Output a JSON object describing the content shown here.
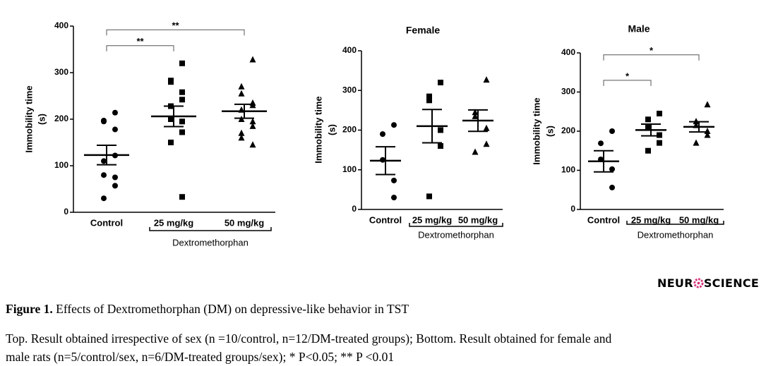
{
  "chart_data": [
    {
      "type": "scatter",
      "title": null,
      "ylabel": [
        "Immobility time",
        "(s)"
      ],
      "categories": [
        "Control",
        "25 mg/kg",
        "50 mg/kg"
      ],
      "group_label": "Dextromethorphan",
      "markers": [
        "circle",
        "square",
        "triangle"
      ],
      "points": [
        [
          214,
          197,
          195,
          178,
          122,
          110,
          80,
          75,
          57,
          30
        ],
        [
          320,
          283,
          280,
          258,
          242,
          228,
          200,
          195,
          172,
          150,
          150,
          33
        ],
        [
          328,
          270,
          255,
          235,
          230,
          220,
          200,
          195,
          185,
          170,
          160,
          145
        ]
      ],
      "means": [
        123,
        206,
        217
      ],
      "sems": [
        21,
        22,
        15
      ],
      "ylim": [
        0,
        400
      ],
      "yticks": [
        0,
        100,
        200,
        300,
        400
      ],
      "significance": [
        {
          "between": [
            "Control",
            "25 mg/kg"
          ],
          "y": 358,
          "label": "**"
        },
        {
          "between": [
            "Control",
            "50 mg/kg"
          ],
          "y": 392,
          "label": "**"
        }
      ]
    },
    {
      "type": "scatter",
      "title": "Female",
      "ylabel": [
        "Immobility time",
        "(s)"
      ],
      "categories": [
        "Control",
        "25 mg/kg",
        "50 mg/kg"
      ],
      "group_label": "Dextromethorphan",
      "markers": [
        "circle",
        "square",
        "triangle"
      ],
      "points": [
        [
          213,
          190,
          125,
          73,
          30
        ],
        [
          320,
          285,
          275,
          200,
          160,
          33
        ],
        [
          327,
          245,
          235,
          205,
          165,
          145
        ]
      ],
      "means": [
        123,
        210,
        224
      ],
      "sems": [
        35,
        42,
        27
      ],
      "ylim": [
        0,
        400
      ],
      "yticks": [
        0,
        100,
        200,
        300,
        400
      ],
      "significance": []
    },
    {
      "type": "scatter",
      "title": "Male",
      "ylabel": [
        "Immobility time",
        "(s)"
      ],
      "categories": [
        "Control",
        "25 mg/kg",
        "50 mg/kg"
      ],
      "group_label": "Dextromethorphan",
      "markers": [
        "circle",
        "square",
        "triangle"
      ],
      "points": [
        [
          200,
          169,
          128,
          103,
          56
        ],
        [
          245,
          230,
          210,
          190,
          170,
          150
        ],
        [
          268,
          225,
          215,
          200,
          190,
          170
        ]
      ],
      "means": [
        123,
        203,
        211
      ],
      "sems": [
        27,
        15,
        13
      ],
      "ylim": [
        0,
        400
      ],
      "yticks": [
        0,
        100,
        200,
        300,
        400
      ],
      "significance": [
        {
          "between": [
            "Control",
            "25 mg/kg"
          ],
          "y": 330,
          "label": "*"
        },
        {
          "between": [
            "Control",
            "50 mg/kg"
          ],
          "y": 395,
          "label": "*"
        }
      ]
    }
  ],
  "logo": {
    "left": "NEUR",
    "right": "SCIENCE"
  },
  "caption": {
    "label": "Figure 1.",
    "title": " Effects of Dextromethorphan (DM) on depressive-like behavior in TST",
    "lines": [
      "Top. Result obtained irrespective of sex (n =10/control, n=12/DM-treated groups); Bottom. Result obtained for female and",
      "male rats (n=5/control/sex, n=6/DM-treated groups/sex); * P<0.05; ** P <0.01"
    ]
  }
}
